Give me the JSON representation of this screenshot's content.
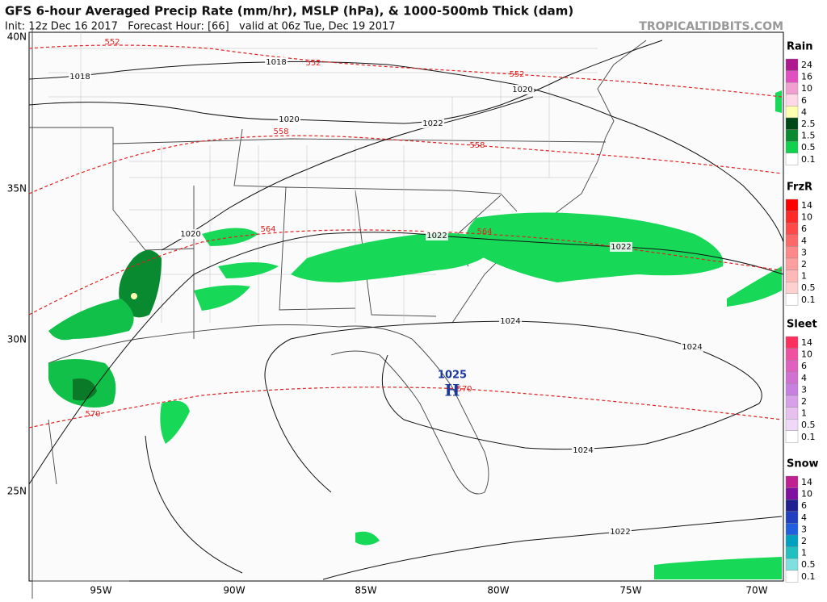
{
  "header": {
    "title": "GFS 6-hour Averaged Precip Rate (mm/hr), MSLP (hPa), & 1000-500mb Thick (dam)",
    "subtitle": "Init: 12z Dec 16 2017   Forecast Hour: [66]   valid at 06z Tue, Dec 19 2017",
    "site": "TROPICALTIDBITS.COM"
  },
  "map": {
    "lat_labels": [
      "40N",
      "35N",
      "30N",
      "25N"
    ],
    "lon_labels": [
      "95W",
      "90W",
      "85W",
      "80W",
      "75W",
      "70W"
    ],
    "isobar_labels": [
      1018,
      1018,
      1020,
      1020,
      1022,
      1020,
      1022,
      1022,
      1024,
      1024,
      1024,
      1022
    ],
    "thickness_labels": [
      552,
      552,
      552,
      558,
      558,
      564,
      564,
      570,
      570
    ],
    "high": {
      "pressure": 1025,
      "label": "H"
    }
  },
  "legends": [
    {
      "title": "Rain",
      "labels": [
        24,
        16,
        10,
        6,
        4,
        2.5,
        1.5,
        0.5,
        0.1
      ],
      "colors": [
        "#b01890",
        "#e050c0",
        "#f0a0d0",
        "#ffd8e8",
        "#ffffb0",
        "#004818",
        "#0a8a30",
        "#10d050",
        "#ffffff"
      ]
    },
    {
      "title": "FrzR",
      "labels": [
        14,
        10,
        6,
        4,
        3,
        2,
        1,
        0.5,
        0.1
      ],
      "colors": [
        "#ff0000",
        "#ff2828",
        "#ff4848",
        "#ff6868",
        "#ff8888",
        "#ffa0a0",
        "#ffb8b8",
        "#ffd0d0",
        "#ffffff"
      ]
    },
    {
      "title": "Sleet",
      "labels": [
        14,
        10,
        6,
        4,
        3,
        2,
        1,
        0.5,
        0.1
      ],
      "colors": [
        "#ff3060",
        "#f050a0",
        "#e060c0",
        "#d070d0",
        "#c880e0",
        "#d8a0e8",
        "#e8c0f0",
        "#f0d8f8",
        "#ffffff"
      ]
    },
    {
      "title": "Snow",
      "labels": [
        14,
        10,
        6,
        4,
        3,
        2,
        1,
        0.5,
        0.1
      ],
      "colors": [
        "#c02090",
        "#8010a0",
        "#202090",
        "#2040c0",
        "#2060e0",
        "#00a0c0",
        "#20c0c0",
        "#80e0e0",
        "#ffffff"
      ]
    }
  ]
}
